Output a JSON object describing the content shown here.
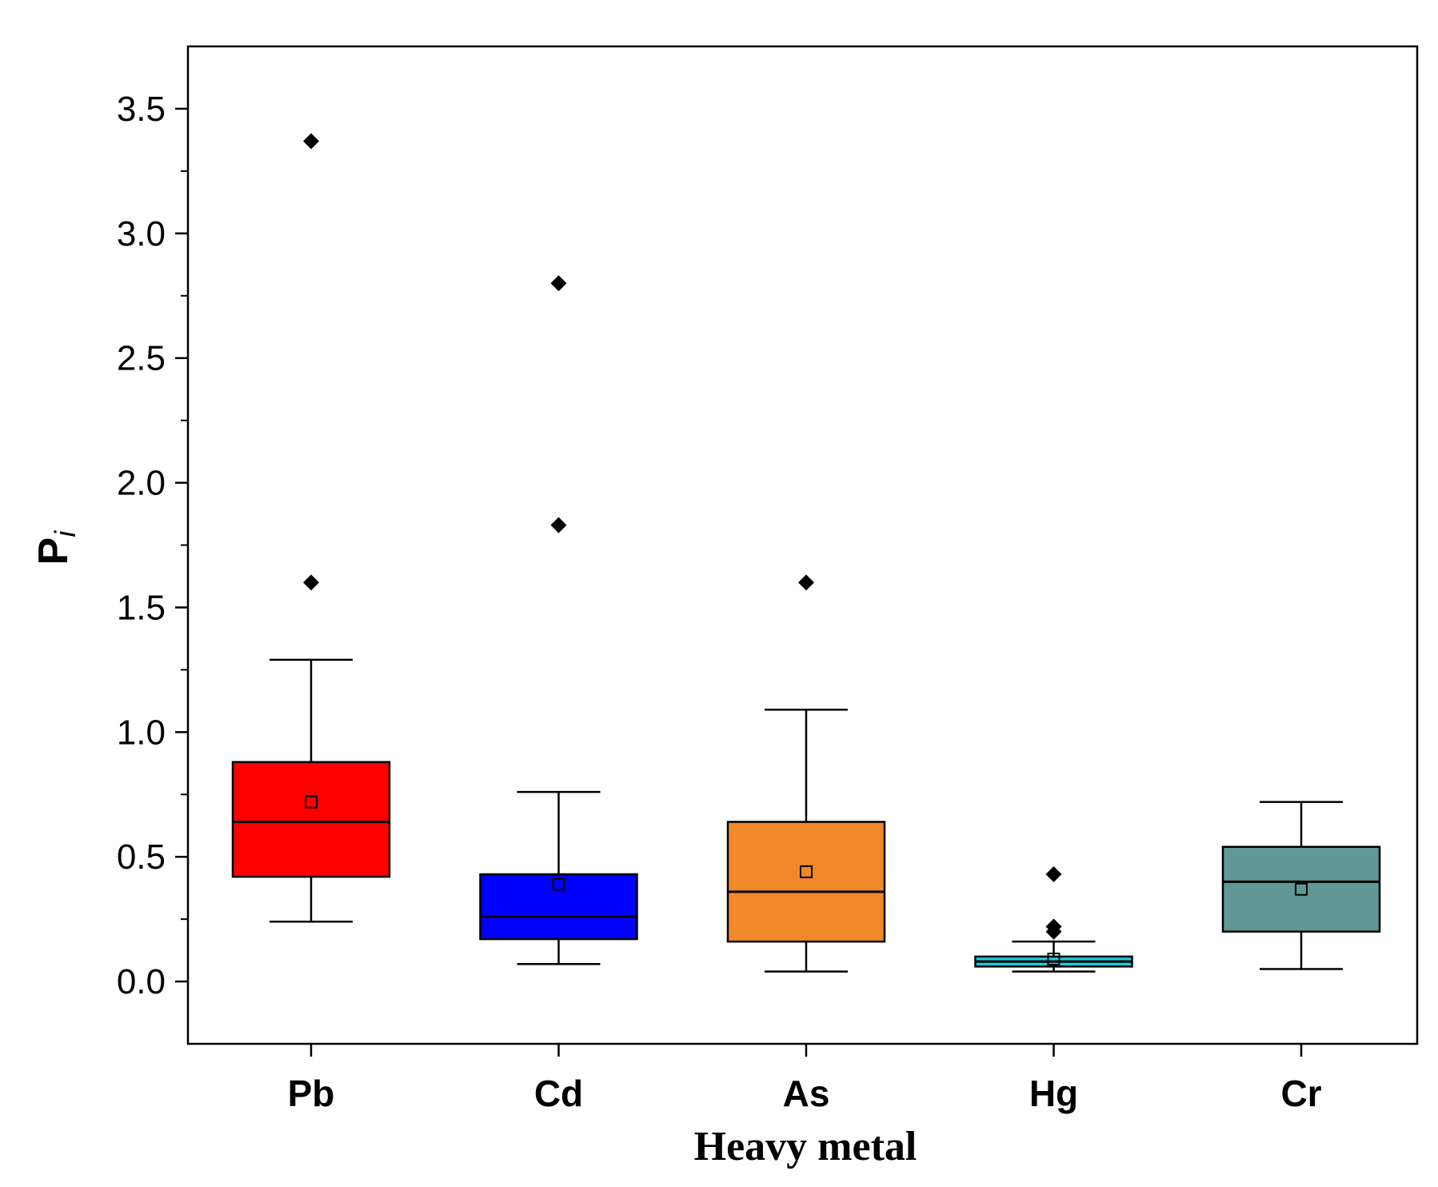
{
  "chart_data": {
    "type": "box",
    "xlabel": "Heavy metal",
    "ylabel": "P",
    "ylabel_subscript": "i",
    "ylim": [
      -0.25,
      3.75
    ],
    "yticks": [
      "0.0",
      "0.5",
      "1.0",
      "1.5",
      "2.0",
      "2.5",
      "3.0",
      "3.5"
    ],
    "categories": [
      "Pb",
      "Cd",
      "As",
      "Hg",
      "Cr"
    ],
    "boxes": [
      {
        "name": "Pb",
        "color": "#ff0000",
        "whisker_low": 0.24,
        "q1": 0.42,
        "median": 0.64,
        "q3": 0.88,
        "whisker_high": 1.29,
        "mean": 0.72,
        "outliers": [
          1.6,
          3.37
        ]
      },
      {
        "name": "Cd",
        "color": "#0000ff",
        "whisker_low": 0.07,
        "q1": 0.17,
        "median": 0.26,
        "q3": 0.43,
        "whisker_high": 0.76,
        "mean": 0.39,
        "outliers": [
          1.83,
          2.8
        ]
      },
      {
        "name": "As",
        "color": "#f0892a",
        "whisker_low": 0.04,
        "q1": 0.16,
        "median": 0.36,
        "q3": 0.64,
        "whisker_high": 1.09,
        "mean": 0.44,
        "outliers": [
          1.6
        ]
      },
      {
        "name": "Hg",
        "color": "#1fc8d8",
        "whisker_low": 0.04,
        "q1": 0.06,
        "median": 0.08,
        "q3": 0.1,
        "whisker_high": 0.16,
        "mean": 0.09,
        "outliers": [
          0.2,
          0.22,
          0.43
        ]
      },
      {
        "name": "Cr",
        "color": "#5f9896",
        "whisker_low": 0.05,
        "q1": 0.2,
        "median": 0.4,
        "q3": 0.54,
        "whisker_high": 0.72,
        "mean": 0.37,
        "outliers": []
      }
    ]
  }
}
